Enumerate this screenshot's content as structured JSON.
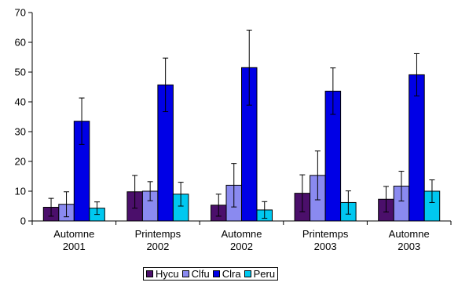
{
  "chart_data": {
    "type": "bar",
    "categories": [
      [
        "Automne",
        "2001"
      ],
      [
        "Printemps",
        "2002"
      ],
      [
        "Automne",
        "2002"
      ],
      [
        "Printemps",
        "2003"
      ],
      [
        "Automne",
        "2003"
      ]
    ],
    "series": [
      {
        "name": "Hycu",
        "color": "#4b0f6b",
        "values": [
          4.6,
          9.8,
          5.3,
          9.3,
          7.3
        ],
        "errors": [
          3.0,
          5.5,
          3.7,
          6.2,
          4.3
        ]
      },
      {
        "name": "Clfu",
        "color": "#8a8af0",
        "values": [
          5.6,
          10.0,
          12.0,
          15.3,
          11.7
        ],
        "errors": [
          4.2,
          3.2,
          7.3,
          8.2,
          5.0
        ]
      },
      {
        "name": "Clra",
        "color": "#0000e6",
        "values": [
          33.5,
          45.7,
          51.5,
          43.6,
          49.1
        ],
        "errors": [
          7.8,
          9.0,
          12.6,
          7.8,
          7.1
        ]
      },
      {
        "name": "Peru",
        "color": "#00c8f0",
        "values": [
          4.3,
          9.0,
          3.7,
          6.2,
          10.0
        ],
        "errors": [
          2.1,
          4.0,
          2.8,
          3.9,
          3.8
        ]
      }
    ],
    "ylim": [
      0,
      70
    ],
    "yticks": [
      "0",
      "10",
      "20",
      "30",
      "40",
      "50",
      "60",
      "70"
    ],
    "legend_position": "bottom",
    "grid": false
  }
}
